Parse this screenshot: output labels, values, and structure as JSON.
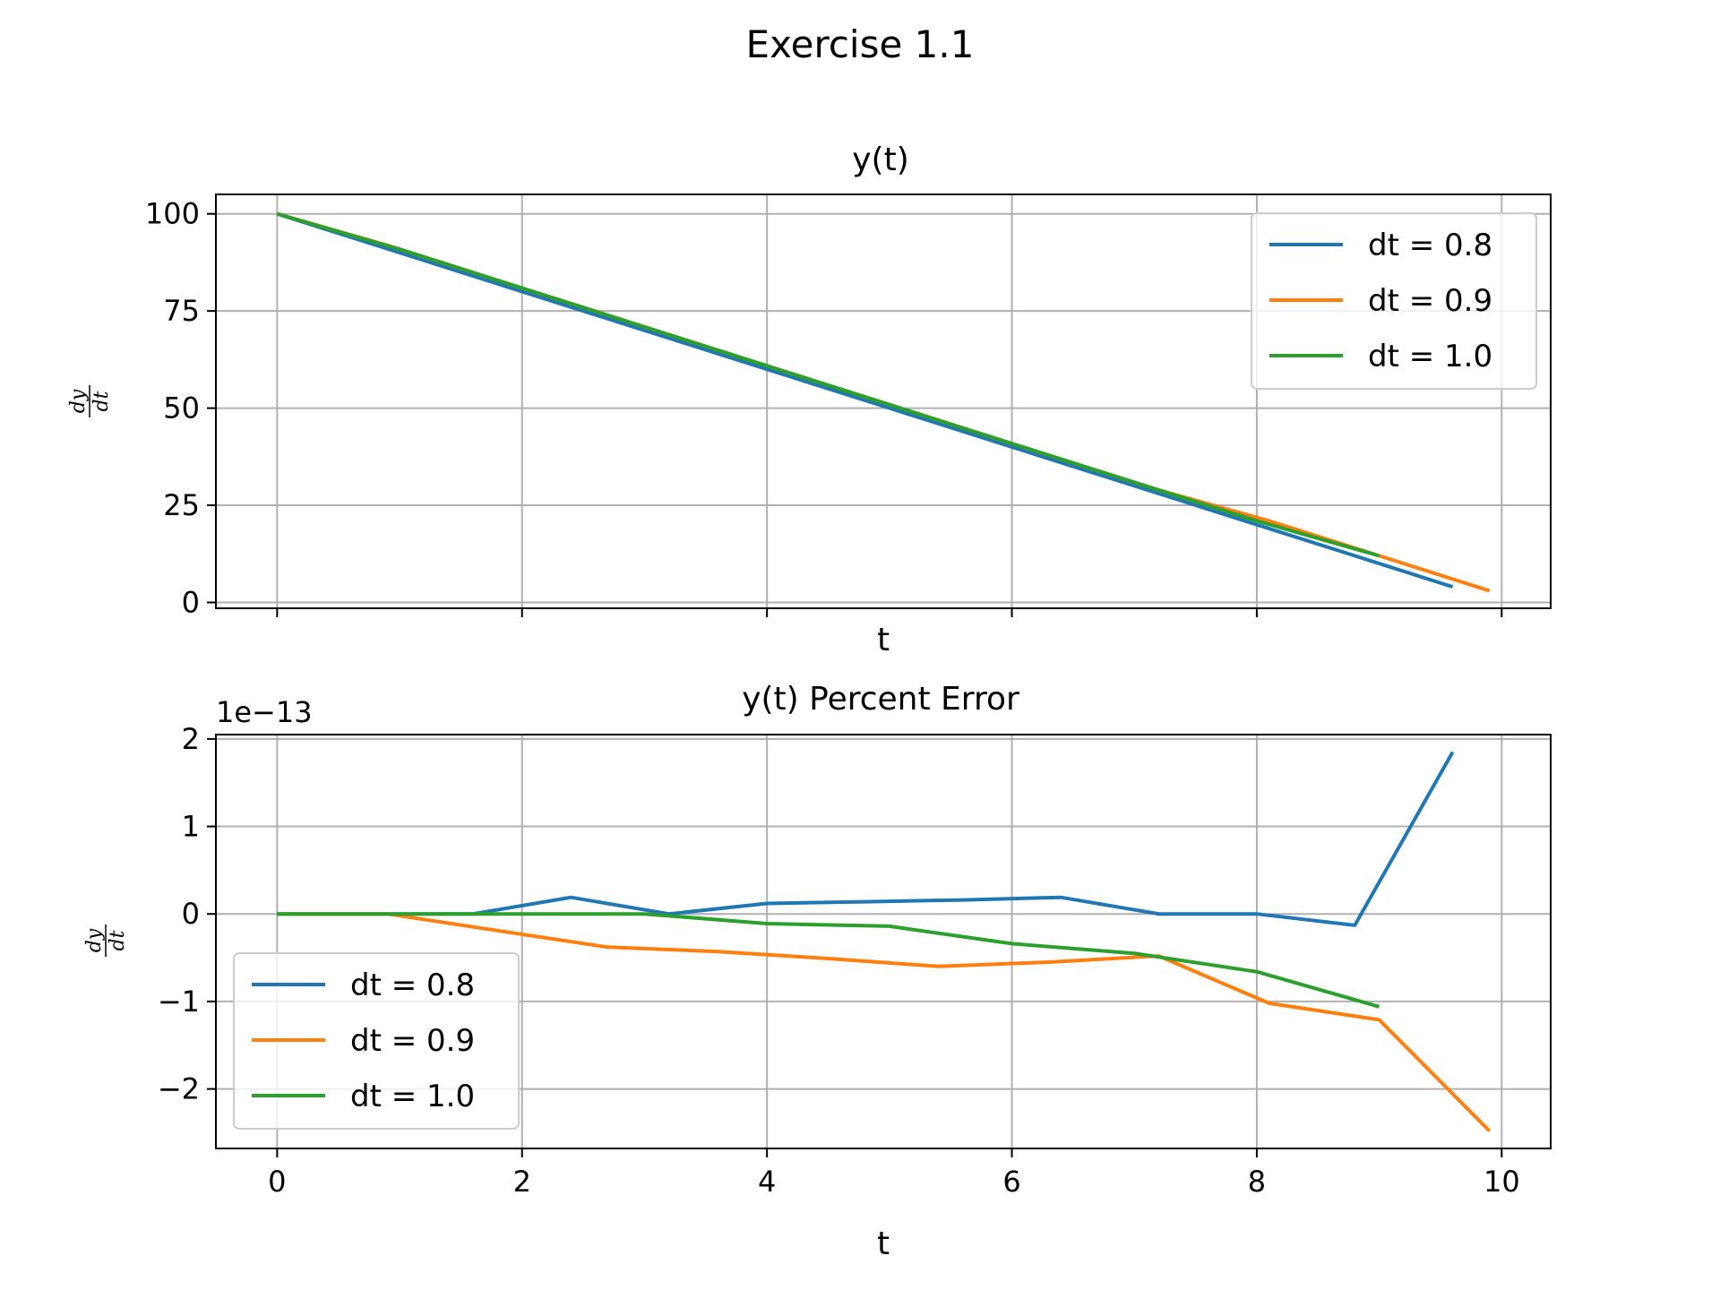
{
  "suptitle": "Exercise 1.1",
  "colors": {
    "dt_0_8": "#1f77b4",
    "dt_0_9": "#ff7f0e",
    "dt_1_0": "#2ca02c",
    "grid": "#b0b0b0"
  },
  "chart_data": [
    {
      "type": "line",
      "title": "y(t)",
      "xlabel": "t",
      "ylabel_num": "dy",
      "ylabel_den": "dt",
      "xlim": [
        -0.5,
        10.4
      ],
      "ylim": [
        -1.5,
        105
      ],
      "xticks": [
        0,
        2,
        4,
        6,
        8,
        10
      ],
      "xtick_labels_visible": false,
      "yticks": [
        0,
        25,
        50,
        75,
        100
      ],
      "ytick_labels": [
        "0",
        "25",
        "50",
        "75",
        "100"
      ],
      "grid": true,
      "legend": "upper right",
      "series": [
        {
          "name": "dt = 0.8",
          "color": "#1f77b4",
          "x": [
            0,
            0.8,
            1.6,
            2.4,
            3.2,
            4.0,
            4.8,
            5.6,
            6.4,
            7.2,
            8.0,
            8.8,
            9.6
          ],
          "y": [
            100,
            92.0,
            84.0,
            76.0,
            68.0,
            60.0,
            52.0,
            44.0,
            36.0,
            28.0,
            20.0,
            12.0,
            4.0
          ]
        },
        {
          "name": "dt = 0.9",
          "color": "#ff7f0e",
          "x": [
            0,
            0.9,
            1.8,
            2.7,
            3.6,
            4.5,
            5.4,
            6.3,
            7.2,
            8.1,
            9.0,
            9.9
          ],
          "y": [
            100,
            91.9,
            82.9,
            73.9,
            64.9,
            55.9,
            46.9,
            37.9,
            28.9,
            21.0,
            12.0,
            3.0
          ]
        },
        {
          "name": "dt = 1.0",
          "color": "#2ca02c",
          "x": [
            0,
            1,
            2,
            3,
            4,
            5,
            6,
            7,
            8,
            9
          ],
          "y": [
            100,
            90.9,
            80.9,
            70.9,
            60.9,
            50.9,
            40.9,
            30.9,
            21.0,
            12.0
          ]
        }
      ]
    },
    {
      "type": "line",
      "title": "y(t) Percent Error",
      "offset_text": "1e−13",
      "xlabel": "t",
      "ylabel_num": "dy",
      "ylabel_den": "dt",
      "xlim": [
        -0.5,
        10.4
      ],
      "ylim": [
        -2.68,
        2.05
      ],
      "xticks": [
        0,
        2,
        4,
        6,
        8,
        10
      ],
      "xtick_labels": [
        "0",
        "2",
        "4",
        "6",
        "8",
        "10"
      ],
      "yticks": [
        -2,
        -1,
        0,
        1,
        2
      ],
      "ytick_labels": [
        "−2",
        "−1",
        "0",
        "1",
        "2"
      ],
      "grid": true,
      "legend": "lower left",
      "series": [
        {
          "name": "dt = 0.8",
          "color": "#1f77b4",
          "x": [
            0,
            0.8,
            1.6,
            2.4,
            3.2,
            4.0,
            4.8,
            5.6,
            6.4,
            7.2,
            8.0,
            8.8,
            9.6
          ],
          "y": [
            0,
            0,
            0,
            0.19,
            0,
            0.12,
            0.14,
            0.16,
            0.19,
            0,
            0,
            -0.13,
            1.85
          ]
        },
        {
          "name": "dt = 0.9",
          "color": "#ff7f0e",
          "x": [
            0,
            0.9,
            1.8,
            2.7,
            3.6,
            4.5,
            5.4,
            6.3,
            7.2,
            8.1,
            9.0,
            9.9
          ],
          "y": [
            0,
            0,
            -0.19,
            -0.38,
            -0.43,
            -0.51,
            -0.6,
            -0.55,
            -0.48,
            -1.02,
            -1.21,
            -2.48
          ]
        },
        {
          "name": "dt = 1.0",
          "color": "#2ca02c",
          "x": [
            0,
            1,
            2,
            3,
            4,
            5,
            6,
            7,
            8,
            9
          ],
          "y": [
            0,
            0,
            0,
            0,
            -0.11,
            -0.14,
            -0.34,
            -0.45,
            -0.66,
            -1.06
          ]
        }
      ]
    }
  ]
}
